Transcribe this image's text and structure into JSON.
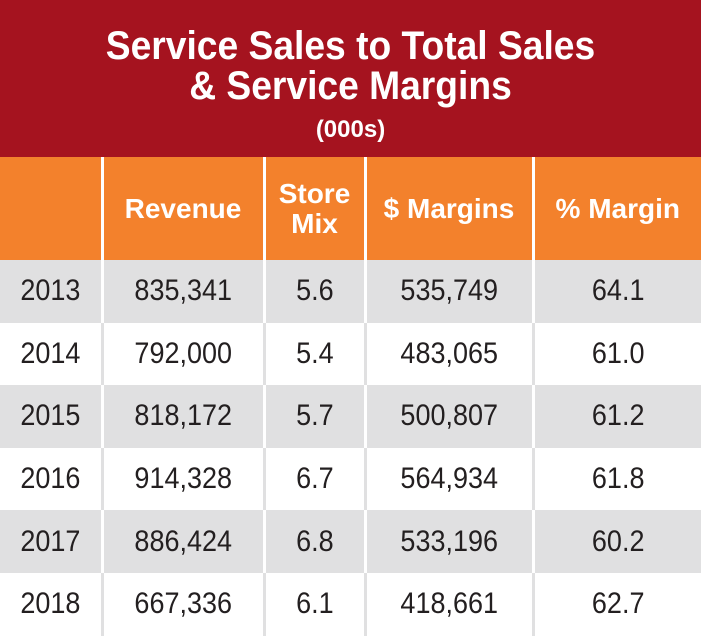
{
  "title": {
    "line1": "Service Sales to Total Sales",
    "line2": "& Service Margins",
    "subtitle": "(000s)"
  },
  "colors": {
    "title_bg": "#a5131f",
    "header_bg": "#f3812c",
    "row_shade": "#e0e0e1",
    "text": "#231f20"
  },
  "chart_data": {
    "type": "table",
    "title": "Service Sales to Total Sales & Service Margins",
    "subtitle": "(000s)",
    "columns": [
      "",
      "Revenue",
      "Store Mix",
      "$ Margins",
      "% Margin"
    ],
    "header": {
      "col0": "",
      "revenue": "Revenue",
      "store_mix_line1": "Store",
      "store_mix_line2": "Mix",
      "margins": "$ Margins",
      "pct_margin": "% Margin"
    },
    "rows": [
      {
        "year": "2013",
        "revenue": "835,341",
        "store_mix": "5.6",
        "margins": "535,749",
        "pct_margin": "64.1"
      },
      {
        "year": "2014",
        "revenue": "792,000",
        "store_mix": "5.4",
        "margins": "483,065",
        "pct_margin": "61.0"
      },
      {
        "year": "2015",
        "revenue": "818,172",
        "store_mix": "5.7",
        "margins": "500,807",
        "pct_margin": "61.2"
      },
      {
        "year": "2016",
        "revenue": "914,328",
        "store_mix": "6.7",
        "margins": "564,934",
        "pct_margin": "61.8"
      },
      {
        "year": "2017",
        "revenue": "886,424",
        "store_mix": "6.8",
        "margins": "533,196",
        "pct_margin": "60.2"
      },
      {
        "year": "2018",
        "revenue": "667,336",
        "store_mix": "6.1",
        "margins": "418,661",
        "pct_margin": "62.7"
      }
    ]
  }
}
